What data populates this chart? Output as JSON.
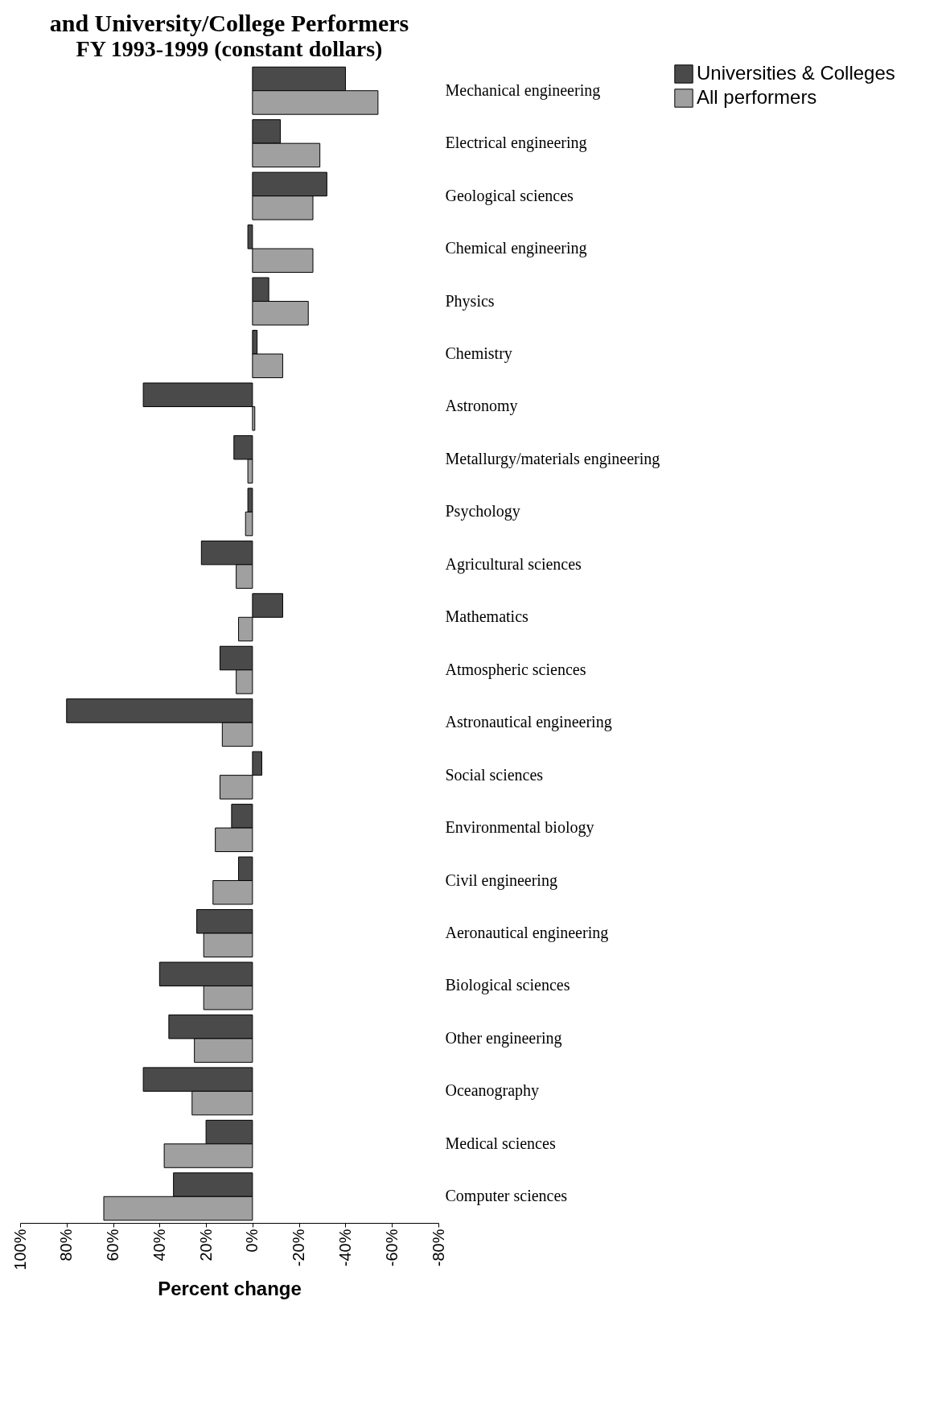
{
  "chart_data": {
    "type": "bar",
    "orientation": "horizontal",
    "title": "and University/College Performers",
    "subtitle": "FY 1993-1999 (constant dollars)",
    "xlabel": "Percent change",
    "categories": [
      "Mechanical engineering",
      "Electrical engineering",
      "Geological sciences",
      "Chemical engineering",
      "Physics",
      "Chemistry",
      "Astronomy",
      "Metallurgy/materials engineering",
      "Psychology",
      "Agricultural sciences",
      "Mathematics",
      "Atmospheric sciences",
      "Astronautical engineering",
      "Social sciences",
      "Environmental biology",
      "Civil engineering",
      "Aeronautical engineering",
      "Biological sciences",
      "Other engineering",
      "Oceanography",
      "Medical sciences",
      "Computer sciences"
    ],
    "series": [
      {
        "name": "Universities & Colleges",
        "color": "#4a4a4a",
        "values": [
          -40,
          -12,
          -32,
          2,
          -7,
          -2,
          47,
          8,
          2,
          22,
          -13,
          14,
          80,
          -4,
          9,
          6,
          24,
          40,
          36,
          47,
          20,
          34
        ]
      },
      {
        "name": "All performers",
        "color": "#a0a0a0",
        "values": [
          -54,
          -29,
          -26,
          -26,
          -24,
          -13,
          -1,
          2,
          3,
          7,
          6,
          7,
          13,
          14,
          16,
          17,
          21,
          21,
          25,
          26,
          38,
          64
        ]
      }
    ],
    "xlim": [
      100,
      -80
    ],
    "xticks": [
      {
        "value": 100,
        "label": "100%"
      },
      {
        "value": 80,
        "label": "80%"
      },
      {
        "value": 60,
        "label": "60%"
      },
      {
        "value": 40,
        "label": "40%"
      },
      {
        "value": 20,
        "label": "20%"
      },
      {
        "value": 0,
        "label": "0%"
      },
      {
        "value": -20,
        "label": "-20%"
      },
      {
        "value": -40,
        "label": "-40%"
      },
      {
        "value": -60,
        "label": "-60%"
      },
      {
        "value": -80,
        "label": "-80%"
      }
    ],
    "legend": "right",
    "grid": false
  }
}
